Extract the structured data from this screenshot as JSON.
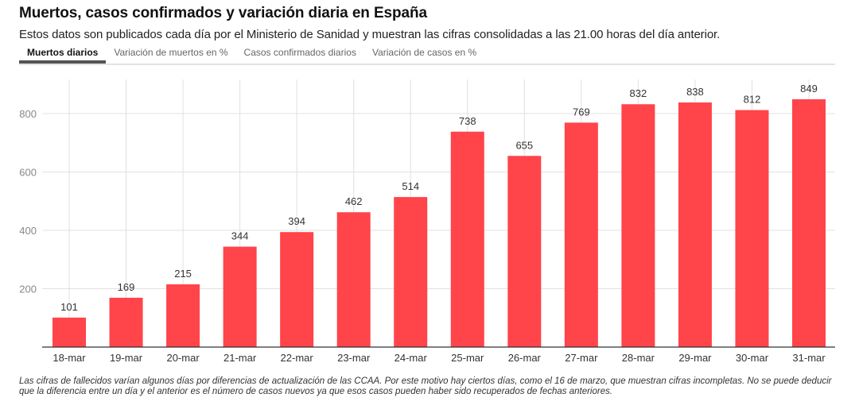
{
  "header": {
    "title": "Muertos, casos confirmados y variación diaria en España",
    "subtitle": "Estos datos son publicados cada día por el Ministerio de Sanidad y muestran las cifras consolidadas a las 21.00 horas del día anterior."
  },
  "tabs": [
    {
      "label": "Muertos diarios",
      "active": true
    },
    {
      "label": "Variación de muertos en %",
      "active": false
    },
    {
      "label": "Casos confirmados diarios",
      "active": false
    },
    {
      "label": "Variación de casos en %",
      "active": false
    }
  ],
  "chart_data": {
    "type": "bar",
    "title": "Muertos diarios",
    "xlabel": "",
    "ylabel": "",
    "categories": [
      "18-mar",
      "19-mar",
      "20-mar",
      "21-mar",
      "22-mar",
      "23-mar",
      "24-mar",
      "25-mar",
      "26-mar",
      "27-mar",
      "28-mar",
      "29-mar",
      "30-mar",
      "31-mar"
    ],
    "values": [
      101,
      169,
      215,
      344,
      394,
      462,
      514,
      738,
      655,
      769,
      832,
      838,
      812,
      849
    ],
    "ylim": [
      0,
      900
    ],
    "yticks": [
      200,
      400,
      600,
      800
    ],
    "grid": true,
    "data_labels": true,
    "bar_color": "#ff444a",
    "legend": "none"
  },
  "note": "Las cifras de fallecidos varían algunos días por diferencias de actualización de las CCAA. Por este motivo hay ciertos días, como el 16 de marzo, que muestran cifras incompletas. No se puede deducir que la diferencia entre un día y el anterior es el número de casos nuevos ya que esos casos pueden haber sido recuperados de fechas anteriores."
}
